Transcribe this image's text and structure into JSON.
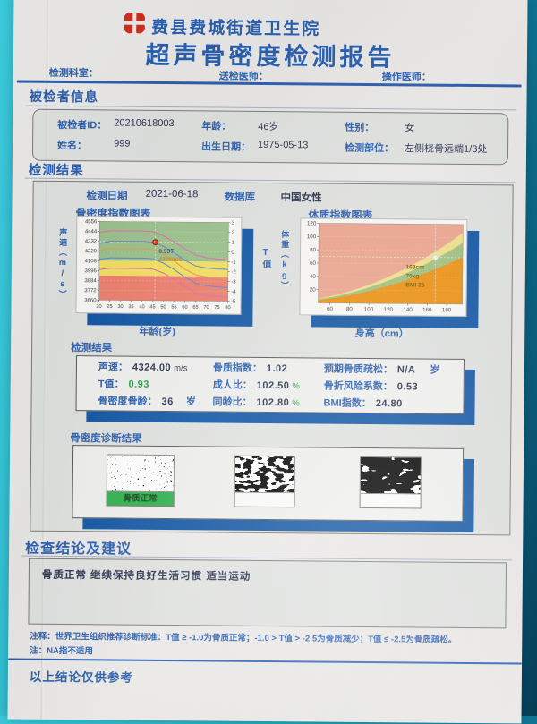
{
  "colors": {
    "accent_blue": "#2a5fb0",
    "shadow_blue": "#1156a5",
    "status_green": "#1f9e45",
    "normal_label_green": "#2fb14c",
    "marker_red": "#e2382a",
    "background_teal": "#3bc9db"
  },
  "header": {
    "hospital": "费县费城街道卫生院",
    "title": "超声骨密度检测报告",
    "department_label": "检测科室：",
    "referring_doctor_label": "送检医师：",
    "operator_label": "操作医师："
  },
  "patient_section": {
    "heading": "被检者信息",
    "id_label": "被检者ID：",
    "id_value": "20210618003",
    "age_label": "年龄：",
    "age_value": "46岁",
    "gender_label": "性别：",
    "gender_value": "女",
    "name_label": "姓名：",
    "name_value": "999",
    "dob_label": "出生日期：",
    "dob_value": "1975-05-13",
    "site_label": "检测部位：",
    "site_value": "左侧桡骨远端1/3处"
  },
  "results_section": {
    "heading": "检测结果",
    "date_label": "检测日期",
    "date_value": "2021-06-18",
    "database_label": "数据库",
    "database_value": "中国女性"
  },
  "measurements": {
    "heading": "检测结果",
    "col1": [
      {
        "label": "声速：",
        "value": "4324.00",
        "unit": "m/s"
      },
      {
        "label": "T值：",
        "value": "0.93",
        "unit": ""
      },
      {
        "label": "骨密度骨龄：",
        "value": "36",
        "unit": "岁"
      }
    ],
    "col2": [
      {
        "label": "骨质指数：",
        "value": "1.02",
        "unit": ""
      },
      {
        "label": "成人比：",
        "value": "102.50",
        "unit": "%"
      },
      {
        "label": "同龄比：",
        "value": "102.80",
        "unit": "%"
      }
    ],
    "col3": [
      {
        "label": "预期骨质疏松：",
        "value": "N/A",
        "unit": "岁"
      },
      {
        "label": "骨折风险系数：",
        "value": "0.53",
        "unit": ""
      },
      {
        "label": "BMI指数：",
        "value": "24.80",
        "unit": ""
      }
    ]
  },
  "diagnosis": {
    "heading": "骨密度诊断结果",
    "normal_label": "骨质正常"
  },
  "conclusion": {
    "heading": "检查结论及建议",
    "text": "骨质正常  继续保持良好生活习惯  适当运动"
  },
  "notes": {
    "note1": "注释：世界卫生组织推荐诊断标准：T值 ≥ -1.0为骨质正常；-1.0 > T值 > -2.5为骨质减少；T值 ≤ -2.5为骨质疏松。",
    "note2": "注：NA指不适用",
    "footer": "以上结论仅供参考"
  },
  "chart_data": [
    {
      "type": "line",
      "title": "骨密度指数图表",
      "xlabel": "年龄(岁)",
      "ylabel": "声速（m/s）",
      "y2label": "T值",
      "x_range": [
        20,
        80
      ],
      "t_range": [
        -5,
        3
      ],
      "x_ticks": [
        20,
        25,
        30,
        35,
        40,
        45,
        50,
        55,
        60,
        65,
        70,
        75,
        80
      ],
      "sv_ticks": [
        4556,
        4444,
        4332,
        4220,
        4108,
        3996,
        3884,
        3772,
        3660
      ],
      "t_ticks": [
        3,
        2,
        1,
        0,
        -1,
        -2,
        -3,
        -4,
        -5
      ],
      "sv_mean": 4220,
      "sv_sd": 112,
      "zones": [
        {
          "t_min": -1,
          "t_max": 3,
          "color": "#9cc28d"
        },
        {
          "t_min": -2.5,
          "t_max": -1,
          "color": "#f3e05e"
        },
        {
          "t_min": -5,
          "t_max": -2.5,
          "color": "#ee7f6d"
        }
      ],
      "ages": [
        20,
        25,
        30,
        35,
        40,
        45,
        50,
        55,
        60,
        65,
        70,
        75,
        80
      ],
      "series": [
        {
          "name": "+2SD",
          "color": "#e170a8",
          "t_values": [
            1.9,
            2.05,
            2.05,
            2.05,
            2.05,
            2.0,
            1.55,
            0.95,
            0.25,
            -0.35,
            -0.6,
            -0.72,
            -0.8
          ]
        },
        {
          "name": "+1SD",
          "color": "#7189c8",
          "t_values": [
            0.75,
            1.0,
            1.0,
            1.0,
            1.0,
            0.95,
            0.5,
            -0.15,
            -0.9,
            -1.45,
            -1.65,
            -1.72,
            -1.78
          ]
        },
        {
          "name": "mean",
          "color": "#dfa24a",
          "t_values": [
            0.05,
            0.25,
            0.25,
            0.25,
            0.25,
            0.2,
            -0.3,
            -1.0,
            -1.8,
            -2.35,
            -2.55,
            -2.65,
            -2.72
          ]
        },
        {
          "name": "-1SD",
          "color": "#6e86c5",
          "t_values": [
            -0.85,
            -0.7,
            -0.7,
            -0.7,
            -0.7,
            -0.75,
            -1.2,
            -1.85,
            -2.6,
            -3.2,
            -3.45,
            -3.55,
            -3.62
          ]
        },
        {
          "name": "-2SD",
          "color": "#e170a8",
          "t_values": [
            -1.9,
            -1.75,
            -1.75,
            -1.75,
            -1.75,
            -1.8,
            -2.2,
            -2.85,
            -3.55,
            -4.2,
            -4.45,
            -4.52,
            -4.6
          ]
        }
      ],
      "marker": {
        "age": 46,
        "t_value": 0.93,
        "sound_speed": 4324,
        "labels": [
          "0.93T",
          "4324m/s"
        ],
        "label_colors": [
          "#3d4a70",
          "#cc8a1e"
        ],
        "color": "#e2382a"
      }
    },
    {
      "type": "area",
      "title": "体质指数图表",
      "xlabel": "身高（cm）",
      "ylabel": "体重（kg）",
      "x_range": [
        48,
        196
      ],
      "y_range": [
        0,
        120
      ],
      "x_ticks": [
        60,
        80,
        100,
        120,
        140,
        160,
        180
      ],
      "y_ticks": [
        20,
        40,
        60,
        80,
        100,
        120
      ],
      "background_color": "#eda58e",
      "bmi_bands": [
        {
          "bmi": 28,
          "color": "#f0e18c"
        },
        {
          "bmi": 24,
          "color": "#a2c17f"
        },
        {
          "bmi": 18.5,
          "color": "#ee9110"
        }
      ],
      "marker": {
        "height_cm": 168,
        "weight_kg": 70,
        "bmi": 25,
        "labels": [
          "168cm",
          "70kg",
          "BMI 25"
        ],
        "label_color": "#7a5c00",
        "color": "#f2f2f0"
      }
    }
  ]
}
